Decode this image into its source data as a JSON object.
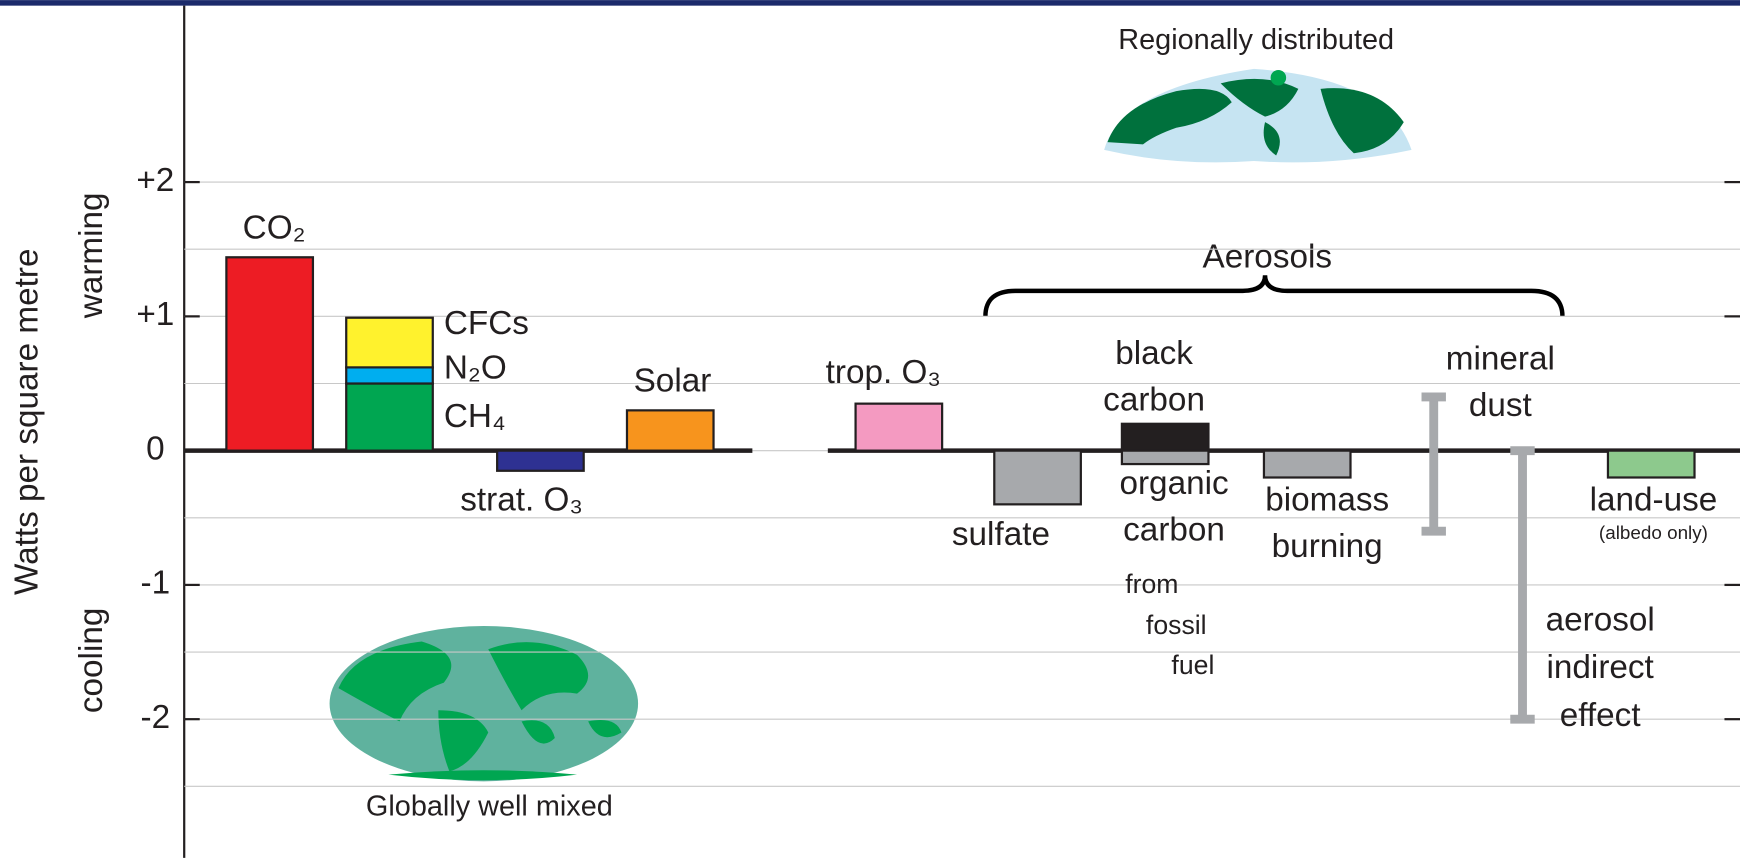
{
  "chart_data": {
    "type": "bar",
    "ylabel": "Watts per square metre",
    "warming_label": "warming",
    "cooling_label": "cooling",
    "regional_caption": "Regionally distributed",
    "global_caption": "Globally well mixed",
    "group_label": "Aerosols",
    "ylim": [
      -3,
      3.3
    ],
    "yticks": [
      {
        "value": 2,
        "label": "+2"
      },
      {
        "value": 1,
        "label": "+1"
      },
      0,
      -1,
      -2
    ],
    "minor_yticks": [
      1.5,
      0.5,
      -0.5,
      -1.5,
      -2.5
    ],
    "grid": true,
    "items": [
      {
        "label": [
          "CO₂"
        ],
        "value": 1.44,
        "color": "#ed1c24"
      },
      {
        "segments": [
          {
            "label": "CH₄",
            "value": 0.5,
            "color": "#00a651"
          },
          {
            "label": "N₂O",
            "value": 0.12,
            "color": "#00aeef"
          },
          {
            "label": "CFCs",
            "value": 0.37,
            "color": "#fff22d"
          }
        ]
      },
      {
        "label": [
          "strat. O₃"
        ],
        "value": -0.15,
        "color": "#2e3192"
      },
      {
        "label": [
          "Solar"
        ],
        "value": 0.3,
        "color": "#f7941d"
      },
      {
        "label": [
          "trop. O₃"
        ],
        "value": 0.35,
        "color": "#f49ac1"
      },
      {
        "label": [
          "sulfate"
        ],
        "value": -0.4,
        "color": "#a7a9ac"
      },
      {
        "segments": [
          {
            "label": [
              "black",
              "carbon"
            ],
            "value": 0.2,
            "color": "#231f20"
          },
          {
            "label": [
              "organic",
              "carbon"
            ],
            "value": -0.1,
            "color": "#a7a9ac"
          }
        ],
        "note": [
          "from",
          "fossil",
          "fuel"
        ]
      },
      {
        "label": [
          "biomass",
          "burning"
        ],
        "value": -0.2,
        "color": "#a7a9ac"
      },
      {
        "label": [
          "mineral",
          "dust"
        ],
        "range": [
          -0.6,
          0.4
        ],
        "color": "#a7a9ac"
      },
      {
        "label": [
          "aerosol",
          "indirect",
          "effect"
        ],
        "range": [
          -2,
          0
        ],
        "color": "#a7a9ac"
      },
      {
        "label": [
          "land-use"
        ],
        "value": -0.2,
        "color": "#8dc98d",
        "note": [
          "(albedo only)"
        ]
      }
    ]
  }
}
